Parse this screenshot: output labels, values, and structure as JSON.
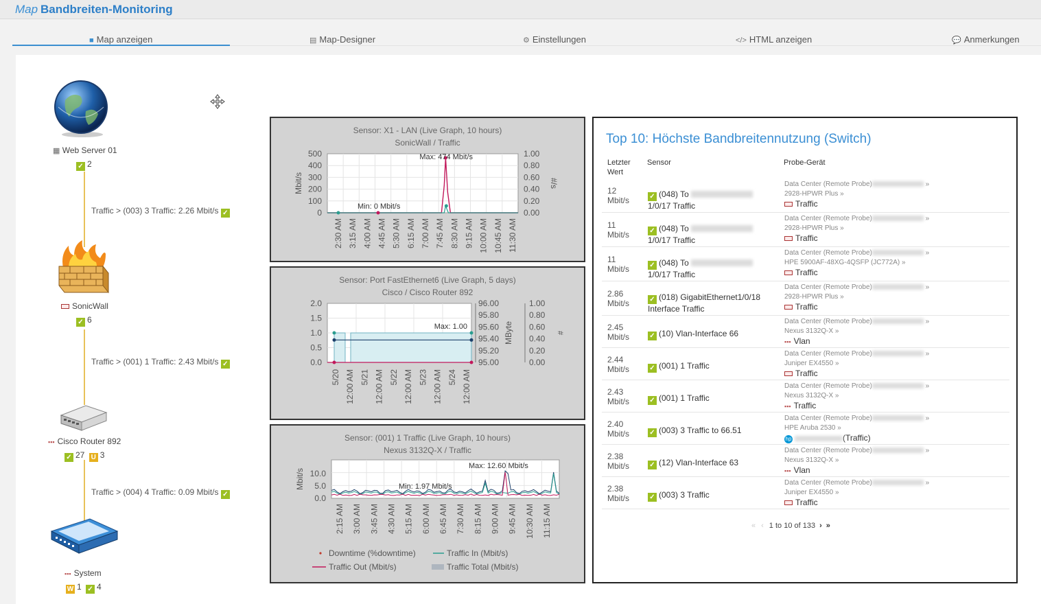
{
  "header": {
    "title_prefix": "Map",
    "title_main": "Bandbreiten-Monitoring"
  },
  "tabs": [
    {
      "label": "Map anzeigen",
      "icon": "map-icon"
    },
    {
      "label": "Map-Designer",
      "icon": "designer-icon"
    },
    {
      "label": "Einstellungen",
      "icon": "gear-icon"
    },
    {
      "label": "HTML anzeigen",
      "icon": "code-icon"
    },
    {
      "label": "Anmerkungen",
      "icon": "comment-icon"
    }
  ],
  "map": {
    "nodes": [
      {
        "name": "Web Server 01",
        "ok": "2"
      },
      {
        "name": "SonicWall",
        "ok": "6"
      },
      {
        "name": "Cisco Router 892",
        "ok": "27",
        "unusual": "3",
        "unusual_letter": "U"
      },
      {
        "name": "System",
        "warn": "1",
        "warn_letter": "W",
        "ok": "4"
      }
    ],
    "edges": [
      "Traffic > (003) 3 Traffic: 2.26 Mbit/s",
      "Traffic > (001) 1 Traffic: 2.43 Mbit/s",
      "Traffic > (004) 4 Traffic: 0.09 Mbit/s"
    ]
  },
  "graphs": [
    {
      "title": "Sensor: X1 - LAN (Live Graph, 10 hours)",
      "subtitle": "SonicWall / Traffic",
      "ylabel": "Mbit/s",
      "y2label": "#/s",
      "yticks": [
        "500",
        "400",
        "300",
        "200",
        "100",
        "0"
      ],
      "y2ticks": [
        "1.00",
        "0.80",
        "0.60",
        "0.40",
        "0.20",
        "0.00"
      ],
      "xticks": [
        "2:30 AM",
        "3:15 AM",
        "4:00 AM",
        "4:45 AM",
        "5:30 AM",
        "6:15 AM",
        "7:00 AM",
        "7:45 AM",
        "8:30 AM",
        "9:15 AM",
        "10:00 AM",
        "10:45 AM",
        "11:30 AM"
      ],
      "max_label": "Max: 474 Mbit/s",
      "min_label": "Min: 0 Mbit/s"
    },
    {
      "title": "Sensor: Port FastEthernet6 (Live Graph, 5 days)",
      "subtitle": "Cisco / Cisco Router 892",
      "y2label": "MByte",
      "y3label": "#",
      "yticks": [
        "2.0",
        "1.5",
        "1.0",
        "0.5",
        "0.0"
      ],
      "y2ticks": [
        "96.00",
        "95.80",
        "95.60",
        "95.40",
        "95.20",
        "95.00"
      ],
      "y3ticks": [
        "1.00",
        "0.80",
        "0.60",
        "0.40",
        "0.20",
        "0.00"
      ],
      "xticks": [
        "5/20",
        "12:00 AM",
        "5/21",
        "12:00 AM",
        "5/22",
        "12:00 AM",
        "5/23",
        "12:00 AM",
        "5/24",
        "12:00 AM"
      ],
      "max_label": "Max: 1.00"
    },
    {
      "title": "Sensor: (001) 1 Traffic (Live Graph, 10 hours)",
      "subtitle": "Nexus 3132Q-X / Traffic",
      "ylabel": "Mbit/s",
      "yticks": [
        "10.0",
        "5.0",
        "0.0"
      ],
      "xticks": [
        "2:15 AM",
        "3:00 AM",
        "3:45 AM",
        "4:30 AM",
        "5:15 AM",
        "6:00 AM",
        "6:45 AM",
        "7:30 AM",
        "8:15 AM",
        "9:00 AM",
        "9:45 AM",
        "10:30 AM",
        "11:15 AM"
      ],
      "max_label": "Max: 12.60 Mbit/s",
      "min_label": "Min: 1.97 Mbit/s",
      "legend": [
        "Downtime (%downtime)",
        "Traffic In (Mbit/s)",
        "Traffic Out (Mbit/s)",
        "Traffic Total (Mbit/s)"
      ]
    }
  ],
  "top10": {
    "title": "Top 10: Höchste Bandbreitennutzung (Switch)",
    "headers": [
      "Letzter Wert",
      "Sensor",
      "Probe-Gerät"
    ],
    "rows": [
      {
        "v1": "12",
        "v2": "Mbit/s",
        "s1": "(048) To",
        "s2": "1/0/17 Traffic",
        "p1": "Data Center (Remote Probe)",
        "p2": "2928-HPWR Plus »",
        "ty": "Traffic",
        "icon": "port"
      },
      {
        "v1": "11",
        "v2": "Mbit/s",
        "s1": "(048) To",
        "s2": "1/0/17 Traffic",
        "p1": "Data Center (Remote Probe)",
        "p2": "2928-HPWR Plus »",
        "ty": "Traffic",
        "icon": "port"
      },
      {
        "v1": "11",
        "v2": "Mbit/s",
        "s1": "(048) To",
        "s2": "1/0/17 Traffic",
        "p1": "Data Center (Remote Probe)",
        "p2": "HPE 5900AF-48XG-4QSFP (JC772A) »",
        "ty": "Traffic",
        "icon": "port"
      },
      {
        "v1": "2.86",
        "v2": "Mbit/s",
        "s1": "(018) GigabitEthernet1/0/18",
        "s2": "Interface Traffic",
        "p1": "Data Center (Remote Probe)",
        "p2": "2928-HPWR Plus »",
        "ty": "Traffic",
        "icon": "port"
      },
      {
        "v1": "2.45",
        "v2": "Mbit/s",
        "s1": "(10) Vlan-Interface 66",
        "s2": "",
        "p1": "Data Center (Remote Probe)",
        "p2": "Nexus 3132Q-X »",
        "ty": "Vlan",
        "icon": "vlan"
      },
      {
        "v1": "2.44",
        "v2": "Mbit/s",
        "s1": "(001) 1 Traffic",
        "s2": "",
        "p1": "Data Center (Remote Probe)",
        "p2": "Juniper EX4550 »",
        "ty": "Traffic",
        "icon": "port"
      },
      {
        "v1": "2.43",
        "v2": "Mbit/s",
        "s1": "(001) 1 Traffic",
        "s2": "",
        "p1": "Data Center (Remote Probe)",
        "p2": "Nexus 3132Q-X »",
        "ty": "Traffic",
        "icon": "vlan"
      },
      {
        "v1": "2.40",
        "v2": "Mbit/s",
        "s1": "(003) 3 Traffic to 66.51",
        "s2": "",
        "p1": "Data Center (Remote Probe)",
        "p2": "HPE Aruba 2530 »",
        "ty": "(Traffic)",
        "icon": "hp"
      },
      {
        "v1": "2.38",
        "v2": "Mbit/s",
        "s1": "(12) Vlan-Interface 63",
        "s2": "",
        "p1": "Data Center (Remote Probe)",
        "p2": "Nexus 3132Q-X »",
        "ty": "Vlan",
        "icon": "vlan"
      },
      {
        "v1": "2.38",
        "v2": "Mbit/s",
        "s1": "(003) 3 Traffic",
        "s2": "",
        "p1": "Data Center (Remote Probe)",
        "p2": "Juniper EX4550 »",
        "ty": "Traffic",
        "icon": "port"
      }
    ],
    "pager": {
      "first": "«",
      "prev": "‹",
      "text": "1 to 10 of 133",
      "next": "›",
      "last": "»"
    }
  },
  "colors": {
    "accent": "#3b8fd4",
    "ok": "#9cbf22",
    "warn": "#e6b01e",
    "traffic_in": "#2a9d8f",
    "traffic_out": "#c2185b"
  }
}
